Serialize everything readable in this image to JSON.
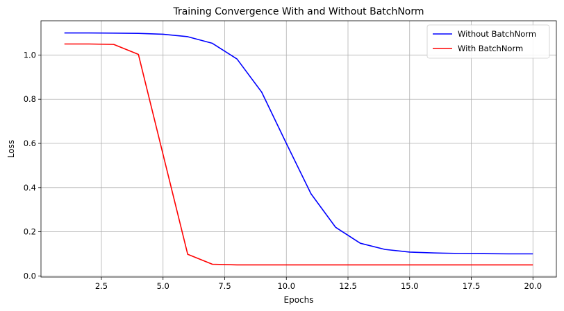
{
  "chart_data": {
    "type": "line",
    "title": "Training Convergence With and Without BatchNorm",
    "xlabel": "Epochs",
    "ylabel": "Loss",
    "xlim": [
      0.05,
      20.95
    ],
    "ylim": [
      -0.005,
      1.155
    ],
    "xticks": [
      2.5,
      5.0,
      7.5,
      10.0,
      12.5,
      15.0,
      17.5,
      20.0
    ],
    "xtick_labels": [
      "2.5",
      "5.0",
      "7.5",
      "10.0",
      "12.5",
      "15.0",
      "17.5",
      "20.0"
    ],
    "yticks": [
      0.0,
      0.2,
      0.4,
      0.6,
      0.8,
      1.0
    ],
    "ytick_labels": [
      "0.0",
      "0.2",
      "0.4",
      "0.6",
      "0.8",
      "1.0"
    ],
    "grid": true,
    "legend_position": "top-right",
    "x": [
      1,
      2,
      3,
      4,
      5,
      6,
      7,
      8,
      9,
      10,
      11,
      12,
      13,
      14,
      15,
      16,
      17,
      18,
      19,
      20
    ],
    "series": [
      {
        "name": "Without BatchNorm",
        "color": "#0000ff",
        "values": [
          1.1,
          1.1,
          1.099,
          1.098,
          1.094,
          1.083,
          1.053,
          0.982,
          0.832,
          0.6,
          0.372,
          0.22,
          0.148,
          0.12,
          0.108,
          0.104,
          0.102,
          0.101,
          0.1,
          0.1
        ]
      },
      {
        "name": "With BatchNorm",
        "color": "#ff0000",
        "values": [
          1.05,
          1.05,
          1.048,
          1.003,
          0.55,
          0.098,
          0.053,
          0.05,
          0.05,
          0.05,
          0.05,
          0.05,
          0.05,
          0.05,
          0.05,
          0.05,
          0.05,
          0.05,
          0.05,
          0.05
        ]
      }
    ]
  }
}
